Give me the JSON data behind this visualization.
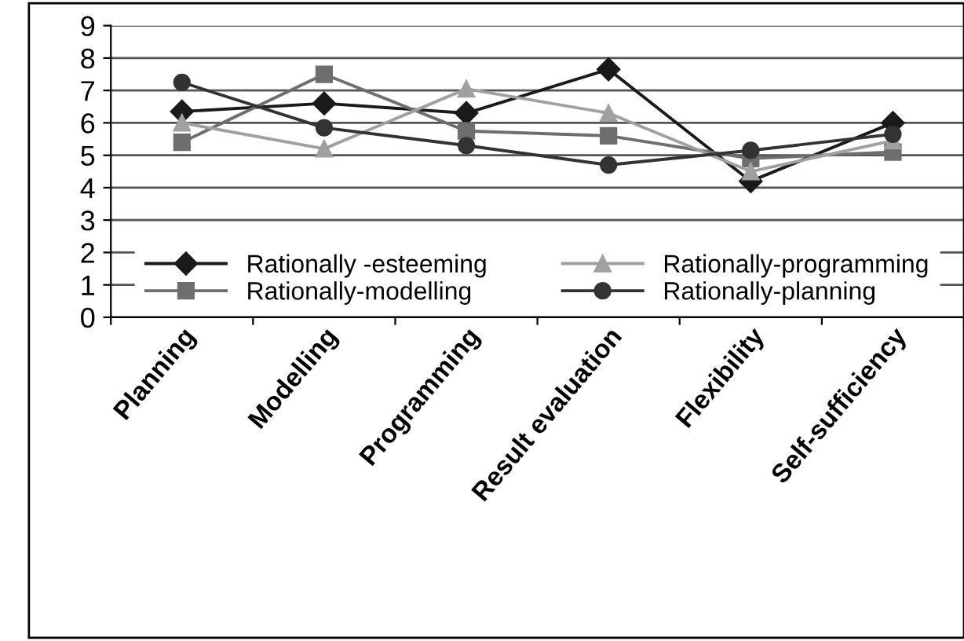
{
  "chart_data": {
    "type": "line",
    "categories": [
      "Planning",
      "Modelling",
      "Programming",
      "Result evaluation",
      "Flexibility",
      "Self-sufficiency"
    ],
    "series": [
      {
        "name": "Rationally -esteeming",
        "color": "#1a1a1a",
        "marker": "diamond",
        "values": [
          6.35,
          6.6,
          6.3,
          7.65,
          4.2,
          6.0
        ]
      },
      {
        "name": "Rationally-modelling",
        "color": "#6e6e6e",
        "marker": "square",
        "values": [
          5.4,
          7.5,
          5.75,
          5.6,
          4.9,
          5.1
        ]
      },
      {
        "name": "Rationally-programming",
        "color": "#a0a0a0",
        "marker": "triangle",
        "values": [
          6.0,
          5.2,
          7.05,
          6.3,
          4.5,
          5.45
        ]
      },
      {
        "name": "Rationally-planning",
        "color": "#333333",
        "marker": "circle",
        "values": [
          7.25,
          5.85,
          5.3,
          4.7,
          5.15,
          5.65
        ]
      }
    ],
    "ylim": [
      0,
      9
    ],
    "yticks": [
      0,
      1,
      2,
      3,
      4,
      5,
      6,
      7,
      8,
      9
    ],
    "grid": "y",
    "legend": "bottom"
  }
}
